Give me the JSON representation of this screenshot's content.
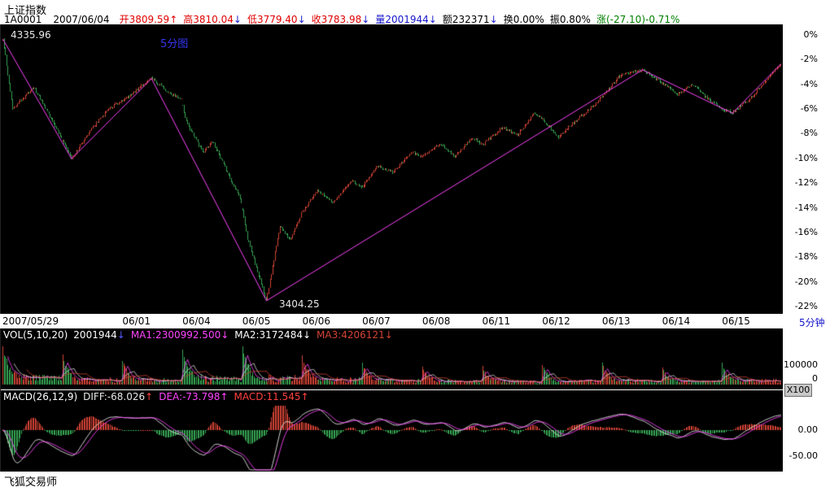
{
  "header": {
    "title": "上证指数",
    "code": "1A0001",
    "date": "2007/06/04",
    "fields": [
      {
        "text": "开3809.59",
        "color": "#e00000",
        "arrow": "↑",
        "arrow_color": "#e00000"
      },
      {
        "text": "高3810.04",
        "color": "#e00000",
        "arrow": "↓",
        "arrow_color": "#2020d0"
      },
      {
        "text": "低3779.40",
        "color": "#e00000",
        "arrow": "↓",
        "arrow_color": "#2020d0"
      },
      {
        "text": "收3783.98",
        "color": "#e00000",
        "arrow": "↓",
        "arrow_color": "#2020d0"
      },
      {
        "text": "量2001944",
        "color": "#1515cc",
        "arrow": "↓",
        "arrow_color": "#2020d0"
      },
      {
        "text": "额232371",
        "color": "#000000",
        "arrow": "↓",
        "arrow_color": "#2020d0"
      },
      {
        "text": "换0.00%",
        "color": "#000000",
        "arrow": "",
        "arrow_color": ""
      },
      {
        "text": "振0.80%",
        "color": "#000000",
        "arrow": "",
        "arrow_color": ""
      },
      {
        "text": "涨(-27.10)-0.71%",
        "color": "#008000",
        "arrow": "",
        "arrow_color": ""
      }
    ]
  },
  "main_chart": {
    "period_label": "5分图",
    "high_label": "4335.96",
    "low_label": "3404.25",
    "axis_labels": [
      "0%",
      "-2%",
      "-4%",
      "-6%",
      "-8%",
      "-10%",
      "-12%",
      "-14%",
      "-16%",
      "-18%",
      "-20%",
      "-22%"
    ],
    "period_unit_label": "5分钟"
  },
  "volume_panel": {
    "fields": [
      {
        "text": "VOL(5,10,20)",
        "color": "#ffffff",
        "arrow": "",
        "arrow_color": ""
      },
      {
        "text": "2001944",
        "color": "#ffffff",
        "arrow": "↓",
        "arrow_color": "#5555ff"
      },
      {
        "text": "MA1:2300992.500",
        "color": "#ff45ff",
        "arrow": "↓",
        "arrow_color": "#ff45ff"
      },
      {
        "text": "MA2:3172484",
        "color": "#ffffff",
        "arrow": "↓",
        "arrow_color": "#ffffff"
      },
      {
        "text": "MA3:4206121",
        "color": "#d24335",
        "arrow": "↓",
        "arrow_color": "#d24335"
      }
    ],
    "axis_labels": [
      "100000",
      "0"
    ],
    "unit_label": "X100"
  },
  "macd_panel": {
    "fields": [
      {
        "text": "MACD(26,12,9)",
        "color": "#ffffff",
        "arrow": "",
        "arrow_color": ""
      },
      {
        "text": "DIFF:-68.026",
        "color": "#e8e8e8",
        "arrow": "↑",
        "arrow_color": "#ff4040"
      },
      {
        "text": "DEA:-73.798",
        "color": "#ff45ff",
        "arrow": "↑",
        "arrow_color": "#ff45ff"
      },
      {
        "text": "MACD:11.545",
        "color": "#ff4040",
        "arrow": "↑",
        "arrow_color": "#ff4040"
      }
    ],
    "axis_labels": [
      "0.00",
      "-50.00"
    ]
  },
  "footer": {
    "app_name": "飞狐交易师"
  },
  "colors": {
    "up": "#d24335",
    "down": "#36a552",
    "zigzag": "#ff45ff",
    "diff_line": "#e8e8e8",
    "dea_line": "#ff45ff",
    "vol_ma1": "#ff45ff",
    "vol_ma2": "#dddddd",
    "vol_ma3": "#d24335",
    "panel_bg": "#000000"
  },
  "chart_data": {
    "type": "candlestick",
    "title": "上证指数 5分图",
    "reference_price": 4335.96,
    "session_low": 3404.25,
    "last_close": 3783.98,
    "percent_axis": {
      "max": 0,
      "min": -22,
      "step": -2
    },
    "bars_per_day": 48,
    "days": [
      "2007/05/29",
      "",
      "06/01",
      "06/04",
      "06/05",
      "06/06",
      "06/07",
      "06/08",
      "06/11",
      "06/12",
      "06/13",
      "06/14",
      "06/15"
    ],
    "trend_anchors_pct": [
      [
        0,
        -0.3
      ],
      [
        8,
        -6.0
      ],
      [
        25,
        -4.2
      ],
      [
        40,
        -7.0
      ],
      [
        55,
        -10.0
      ],
      [
        72,
        -7.5
      ],
      [
        85,
        -6.0
      ],
      [
        100,
        -5.0
      ],
      [
        119,
        -3.5
      ],
      [
        132,
        -4.6
      ],
      [
        143,
        -5.2
      ],
      [
        146,
        -6.8
      ],
      [
        160,
        -9.5
      ],
      [
        168,
        -8.6
      ],
      [
        191,
        -13.5
      ],
      [
        196,
        -16.5
      ],
      [
        211,
        -21.5
      ],
      [
        222,
        -15.5
      ],
      [
        230,
        -16.6
      ],
      [
        239,
        -14.5
      ],
      [
        252,
        -12.6
      ],
      [
        264,
        -13.6
      ],
      [
        280,
        -11.8
      ],
      [
        287,
        -12.4
      ],
      [
        300,
        -10.6
      ],
      [
        312,
        -11.1
      ],
      [
        328,
        -9.5
      ],
      [
        336,
        -9.9
      ],
      [
        350,
        -8.8
      ],
      [
        362,
        -9.8
      ],
      [
        376,
        -8.3
      ],
      [
        384,
        -8.9
      ],
      [
        400,
        -7.5
      ],
      [
        412,
        -8.1
      ],
      [
        426,
        -6.3
      ],
      [
        432,
        -6.8
      ],
      [
        445,
        -8.3
      ],
      [
        458,
        -7.0
      ],
      [
        472,
        -5.8
      ],
      [
        480,
        -5.0
      ],
      [
        495,
        -3.2
      ],
      [
        512,
        -2.8
      ],
      [
        527,
        -3.8
      ],
      [
        540,
        -4.8
      ],
      [
        552,
        -4.0
      ],
      [
        566,
        -5.3
      ],
      [
        576,
        -6.0
      ],
      [
        584,
        -6.3
      ],
      [
        600,
        -5.0
      ],
      [
        612,
        -3.5
      ],
      [
        623,
        -2.3
      ]
    ],
    "zigzag_pct": [
      [
        0,
        -0.3
      ],
      [
        55,
        -10.0
      ],
      [
        119,
        -3.5
      ],
      [
        211,
        -21.5
      ],
      [
        512,
        -2.8
      ],
      [
        584,
        -6.3
      ],
      [
        623,
        -2.3
      ]
    ],
    "volume": {
      "last": 2001944,
      "ma1": 2300992.5,
      "ma2": 3172484,
      "ma3": 4206121,
      "axis_max": 100000,
      "unit": "X100",
      "base_scale": 32000,
      "day_profile": [
        2.3,
        1.7,
        1.5,
        2.0,
        2.3,
        1.7,
        1.35,
        1.15,
        1.05,
        1.2,
        1.3,
        1.05,
        1.35
      ]
    },
    "macd": {
      "fast": 12,
      "slow": 26,
      "signal": 9,
      "diff": -68.026,
      "dea": -73.798,
      "macd": 11.545,
      "axis_gridlines": [
        0,
        -50
      ]
    }
  }
}
